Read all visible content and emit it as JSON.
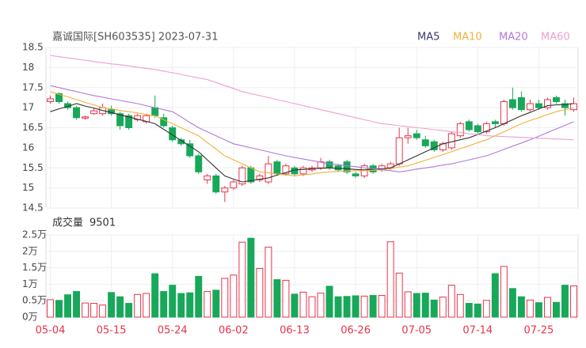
{
  "chart_data": {
    "type": "candlestick",
    "title": "嘉诚国际[SH603535] 2023-07-31",
    "categories": [
      "05-04",
      null,
      null,
      null,
      null,
      null,
      null,
      "05-15",
      null,
      null,
      null,
      null,
      null,
      null,
      "05-24",
      null,
      null,
      null,
      null,
      null,
      null,
      "06-02",
      null,
      null,
      null,
      null,
      null,
      null,
      "06-13",
      null,
      null,
      null,
      null,
      null,
      null,
      "06-26",
      null,
      null,
      null,
      null,
      null,
      null,
      "07-05",
      null,
      null,
      null,
      null,
      null,
      null,
      "07-14",
      null,
      null,
      null,
      null,
      null,
      null,
      "07-25",
      null,
      null,
      null,
      null
    ],
    "open": [
      17.15,
      17.35,
      17.1,
      17.0,
      16.74,
      16.85,
      16.85,
      16.95,
      16.85,
      16.8,
      16.7,
      16.65,
      17.0,
      16.75,
      16.5,
      16.2,
      16.1,
      15.8,
      15.2,
      15.3,
      14.9,
      15.0,
      15.1,
      15.5,
      15.2,
      15.15,
      15.65,
      15.35,
      15.5,
      15.35,
      15.45,
      15.5,
      15.65,
      15.55,
      15.65,
      15.35,
      15.3,
      15.55,
      15.45,
      15.5,
      15.6,
      16.25,
      16.35,
      16.2,
      16.15,
      15.95,
      16.0,
      16.3,
      16.65,
      16.55,
      16.4,
      16.65,
      16.6,
      17.2,
      17.25,
      16.95,
      17.1,
      17.0,
      17.25,
      17.1,
      16.95
    ],
    "high": [
      17.3,
      17.38,
      17.15,
      17.05,
      16.8,
      16.98,
      17.1,
      17.05,
      16.9,
      16.85,
      16.85,
      16.85,
      17.3,
      16.85,
      16.55,
      16.25,
      16.2,
      15.85,
      15.35,
      15.35,
      15.05,
      15.2,
      15.55,
      15.55,
      15.35,
      15.8,
      15.7,
      15.6,
      15.55,
      15.55,
      15.55,
      15.75,
      15.7,
      15.6,
      15.7,
      15.4,
      15.6,
      15.6,
      15.6,
      15.65,
      16.5,
      16.5,
      16.45,
      16.3,
      16.2,
      16.15,
      16.4,
      16.65,
      16.7,
      16.6,
      16.65,
      16.7,
      17.2,
      17.5,
      17.4,
      17.2,
      17.2,
      17.25,
      17.3,
      17.2,
      17.25
    ],
    "low": [
      17.1,
      17.1,
      16.95,
      16.7,
      16.7,
      16.82,
      16.8,
      16.8,
      16.45,
      16.45,
      16.65,
      16.6,
      16.75,
      16.5,
      16.15,
      16.05,
      15.75,
      15.35,
      15.1,
      14.85,
      14.65,
      14.95,
      15.05,
      15.1,
      15.15,
      15.1,
      15.3,
      15.3,
      15.3,
      15.3,
      15.4,
      15.45,
      15.45,
      15.4,
      15.35,
      15.25,
      15.25,
      15.35,
      15.4,
      15.45,
      15.55,
      16.1,
      16.2,
      16.0,
      15.9,
      15.9,
      15.95,
      16.25,
      16.4,
      16.35,
      16.35,
      16.5,
      16.55,
      16.95,
      16.9,
      16.9,
      16.95,
      16.95,
      17.1,
      16.8,
      16.9
    ],
    "close": [
      17.22,
      17.15,
      17.0,
      16.75,
      16.77,
      16.92,
      17.0,
      16.85,
      16.55,
      16.5,
      16.8,
      16.8,
      16.8,
      16.55,
      16.2,
      16.1,
      15.8,
      15.4,
      15.3,
      14.9,
      15.0,
      15.15,
      15.5,
      15.15,
      15.3,
      15.6,
      15.35,
      15.55,
      15.35,
      15.5,
      15.5,
      15.65,
      15.5,
      15.45,
      15.4,
      15.3,
      15.55,
      15.4,
      15.55,
      15.6,
      16.25,
      16.3,
      16.25,
      16.05,
      15.95,
      16.1,
      16.35,
      16.6,
      16.45,
      16.4,
      16.6,
      16.6,
      17.15,
      17.0,
      16.95,
      17.1,
      17.0,
      17.2,
      17.15,
      17.0,
      17.1
    ],
    "up_color": "#e8334a",
    "down_color": "#17a85a",
    "ylim": [
      14.5,
      18.5
    ],
    "yticks": [
      14.5,
      15,
      15.5,
      16,
      16.5,
      17,
      17.5,
      18,
      18.5
    ],
    "series": [
      {
        "name": "MA5",
        "color": "#333333",
        "values": [
          16.9,
          16.97,
          17.03,
          17.1,
          17.04,
          16.99,
          16.93,
          16.88,
          16.82,
          16.77,
          16.71,
          16.66,
          16.6,
          16.46,
          16.32,
          16.18,
          16.04,
          15.9,
          15.7,
          15.5,
          15.3,
          15.22,
          15.15,
          15.18,
          15.22,
          15.25,
          15.32,
          15.38,
          15.45,
          15.46,
          15.48,
          15.49,
          15.5,
          15.49,
          15.48,
          15.46,
          15.45,
          15.47,
          15.48,
          15.5,
          15.6,
          15.7,
          15.8,
          15.9,
          16.0,
          16.1,
          16.15,
          16.2,
          16.25,
          16.33,
          16.42,
          16.5,
          16.6,
          16.7,
          16.8,
          16.88,
          16.97,
          17.05,
          17.07,
          17.08,
          17.1
        ]
      },
      {
        "name": "MA10",
        "color": "#f2b13c",
        "values": [
          17.4,
          17.33,
          17.27,
          17.2,
          17.13,
          17.07,
          17.0,
          16.97,
          16.93,
          16.9,
          16.87,
          16.83,
          16.8,
          16.7,
          16.6,
          16.5,
          16.4,
          16.3,
          16.13,
          15.97,
          15.8,
          15.7,
          15.6,
          15.5,
          15.4,
          15.38,
          15.35,
          15.33,
          15.3,
          15.33,
          15.35,
          15.38,
          15.4,
          15.41,
          15.42,
          15.43,
          15.43,
          15.44,
          15.45,
          15.48,
          15.52,
          15.55,
          15.62,
          15.69,
          15.76,
          15.83,
          15.9,
          15.98,
          16.05,
          16.13,
          16.2,
          16.3,
          16.4,
          16.5,
          16.6,
          16.68,
          16.75,
          16.83,
          16.9,
          16.95,
          17.0
        ]
      },
      {
        "name": "MA20",
        "color": "#b07ad8",
        "values": [
          17.55,
          17.5,
          17.45,
          17.4,
          17.35,
          17.3,
          17.26,
          17.22,
          17.18,
          17.14,
          17.1,
          17.05,
          17.0,
          16.95,
          16.9,
          16.77,
          16.63,
          16.5,
          16.4,
          16.3,
          16.2,
          16.1,
          16.05,
          16.0,
          15.95,
          15.9,
          15.85,
          15.8,
          15.76,
          15.72,
          15.68,
          15.64,
          15.6,
          15.58,
          15.55,
          15.53,
          15.5,
          15.48,
          15.45,
          15.43,
          15.4,
          15.43,
          15.47,
          15.5,
          15.53,
          15.57,
          15.6,
          15.65,
          15.7,
          15.75,
          15.8,
          15.88,
          15.96,
          16.04,
          16.12,
          16.2,
          16.29,
          16.38,
          16.47,
          16.56,
          16.65
        ]
      },
      {
        "name": "MA60",
        "color": "#ee9fcf",
        "values": [
          18.3,
          18.27,
          18.24,
          18.21,
          18.18,
          18.15,
          18.12,
          18.09,
          18.07,
          18.04,
          18.01,
          17.98,
          17.95,
          17.91,
          17.87,
          17.83,
          17.78,
          17.74,
          17.7,
          17.63,
          17.55,
          17.48,
          17.4,
          17.35,
          17.3,
          17.25,
          17.2,
          17.15,
          17.1,
          17.05,
          17.0,
          16.95,
          16.9,
          16.85,
          16.8,
          16.75,
          16.7,
          16.65,
          16.6,
          16.58,
          16.55,
          16.53,
          16.5,
          16.48,
          16.45,
          16.43,
          16.4,
          16.38,
          16.35,
          16.33,
          16.3,
          16.29,
          16.28,
          16.27,
          16.26,
          16.25,
          16.24,
          16.23,
          16.22,
          16.21,
          16.2
        ]
      }
    ],
    "volume_title": "成交量",
    "volume": [
      5300,
      5100,
      6800,
      7800,
      4300,
      4200,
      3700,
      7500,
      6200,
      4200,
      6900,
      7200,
      13200,
      7800,
      9700,
      7200,
      7400,
      12400,
      7800,
      8200,
      11800,
      12800,
      22800,
      24000,
      14800,
      21300,
      11400,
      11200,
      7000,
      7600,
      6200,
      7300,
      9400,
      6200,
      6300,
      6500,
      6400,
      6600,
      6600,
      22900,
      13400,
      7700,
      7200,
      7300,
      5200,
      6100,
      9700,
      6900,
      4200,
      4000,
      5100,
      13200,
      15400,
      8700,
      6200,
      5200,
      4400,
      6000,
      4500,
      9700,
      9501
    ],
    "vlim": [
      0,
      25000
    ],
    "vticks": [
      {
        "value": 0,
        "label": "0万"
      },
      {
        "value": 5000,
        "label": "0.5万"
      },
      {
        "value": 10000,
        "label": "1万"
      },
      {
        "value": 15000,
        "label": "1.5万"
      },
      {
        "value": 20000,
        "label": "2万"
      },
      {
        "value": 25000,
        "label": "2.5万"
      }
    ],
    "grid": true
  }
}
